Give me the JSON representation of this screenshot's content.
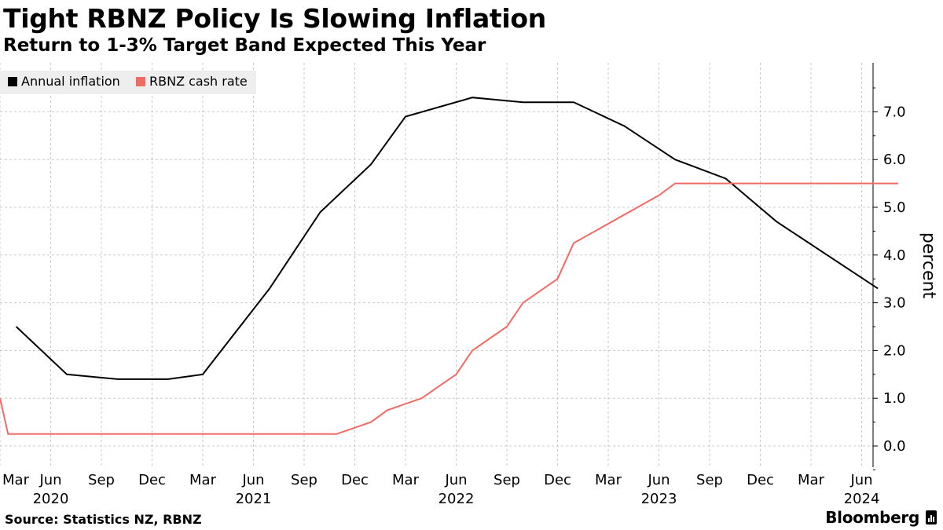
{
  "header": {
    "title": "Tight RBNZ Policy Is Slowing Inflation",
    "subtitle": "Return to 1-3% Target Band Expected This Year"
  },
  "footer": {
    "source": "Source: Statistics NZ, RBNZ",
    "brand": "Bloomberg"
  },
  "colors": {
    "annual_inflation": "#000000",
    "cash_rate": "#f26a63",
    "grid": "#c8c8c8",
    "legend_bg": "#eeeeee"
  },
  "chart_data": {
    "type": "line",
    "title": "Tight RBNZ Policy Is Slowing Inflation",
    "subtitle": "Return to 1-3% Target Band Expected This Year",
    "ylabel": "percent",
    "xlabel": "",
    "ylim": [
      -0.4,
      8.0
    ],
    "yticks": [
      0.0,
      1.0,
      2.0,
      3.0,
      4.0,
      5.0,
      6.0,
      7.0
    ],
    "ytick_labels": [
      "0.0",
      "1.0",
      "2.0",
      "3.0",
      "4.0",
      "5.0",
      "6.0",
      "7.0"
    ],
    "xlim": [
      2020.17,
      2024.6
    ],
    "xtick_labels": [
      {
        "x": 2020.17,
        "label": "Mar"
      },
      {
        "x": 2020.42,
        "label": "Jun"
      },
      {
        "x": 2020.67,
        "label": "Sep"
      },
      {
        "x": 2020.92,
        "label": "Dec"
      },
      {
        "x": 2021.17,
        "label": "Mar"
      },
      {
        "x": 2021.42,
        "label": "Jun"
      },
      {
        "x": 2021.67,
        "label": "Sep"
      },
      {
        "x": 2021.92,
        "label": "Dec"
      },
      {
        "x": 2022.17,
        "label": "Mar"
      },
      {
        "x": 2022.42,
        "label": "Jun"
      },
      {
        "x": 2022.67,
        "label": "Sep"
      },
      {
        "x": 2022.92,
        "label": "Dec"
      },
      {
        "x": 2023.17,
        "label": "Mar"
      },
      {
        "x": 2023.42,
        "label": "Jun"
      },
      {
        "x": 2023.67,
        "label": "Sep"
      },
      {
        "x": 2023.92,
        "label": "Dec"
      },
      {
        "x": 2024.17,
        "label": "Mar"
      },
      {
        "x": 2024.42,
        "label": "Jun"
      }
    ],
    "year_labels": [
      {
        "x": 2020.42,
        "label": "2020"
      },
      {
        "x": 2021.42,
        "label": "2021"
      },
      {
        "x": 2022.42,
        "label": "2022"
      },
      {
        "x": 2023.42,
        "label": "2023"
      },
      {
        "x": 2024.42,
        "label": "2024"
      }
    ],
    "grid": true,
    "legend_position": "top-left",
    "series": [
      {
        "name": "Annual inflation",
        "color": "#000000",
        "points": [
          [
            2020.25,
            2.5
          ],
          [
            2020.5,
            1.5
          ],
          [
            2020.75,
            1.4
          ],
          [
            2021.0,
            1.4
          ],
          [
            2021.17,
            1.5
          ],
          [
            2021.5,
            3.3
          ],
          [
            2021.75,
            4.9
          ],
          [
            2022.0,
            5.9
          ],
          [
            2022.17,
            6.9
          ],
          [
            2022.5,
            7.3
          ],
          [
            2022.75,
            7.2
          ],
          [
            2023.0,
            7.2
          ],
          [
            2023.25,
            6.7
          ],
          [
            2023.5,
            6.0
          ],
          [
            2023.75,
            5.6
          ],
          [
            2024.0,
            4.7
          ],
          [
            2024.25,
            4.0
          ],
          [
            2024.5,
            3.3
          ]
        ]
      },
      {
        "name": "RBNZ cash rate",
        "color": "#f26a63",
        "points": [
          [
            2020.17,
            1.0
          ],
          [
            2020.21,
            0.25
          ],
          [
            2021.83,
            0.25
          ],
          [
            2022.0,
            0.5
          ],
          [
            2022.08,
            0.75
          ],
          [
            2022.25,
            1.0
          ],
          [
            2022.42,
            1.5
          ],
          [
            2022.5,
            2.0
          ],
          [
            2022.67,
            2.5
          ],
          [
            2022.75,
            3.0
          ],
          [
            2022.92,
            3.5
          ],
          [
            2023.0,
            4.25
          ],
          [
            2023.42,
            5.25
          ],
          [
            2023.5,
            5.5
          ],
          [
            2024.6,
            5.5
          ]
        ]
      }
    ]
  }
}
